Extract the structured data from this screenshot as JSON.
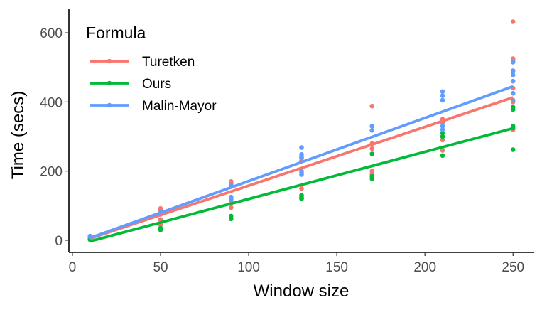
{
  "chart_data": {
    "type": "scatter",
    "xlabel": "Window size",
    "ylabel": "Time (secs)",
    "xlim": [
      -2,
      262
    ],
    "ylim": [
      -35,
      668
    ],
    "x_ticks": [
      0,
      50,
      100,
      150,
      200,
      250
    ],
    "y_ticks": [
      0,
      200,
      400,
      600
    ],
    "grid": false,
    "legend": {
      "title": "Formula",
      "position": "top-left"
    },
    "series": [
      {
        "name": "Turetken",
        "color": "#F8766D",
        "points": [
          [
            10,
            8
          ],
          [
            10,
            5
          ],
          [
            10,
            3
          ],
          [
            50,
            92
          ],
          [
            50,
            88
          ],
          [
            50,
            60
          ],
          [
            50,
            45
          ],
          [
            90,
            170
          ],
          [
            90,
            165
          ],
          [
            90,
            110
          ],
          [
            90,
            95
          ],
          [
            130,
            240
          ],
          [
            130,
            230
          ],
          [
            130,
            195
          ],
          [
            130,
            150
          ],
          [
            170,
            388
          ],
          [
            170,
            280
          ],
          [
            170,
            265
          ],
          [
            170,
            200
          ],
          [
            170,
            190
          ],
          [
            210,
            350
          ],
          [
            210,
            340
          ],
          [
            210,
            290
          ],
          [
            210,
            260
          ],
          [
            250,
            632
          ],
          [
            250,
            525
          ],
          [
            250,
            520
          ],
          [
            250,
            490
          ],
          [
            250,
            440
          ],
          [
            250,
            400
          ],
          [
            250,
            320
          ]
        ],
        "fit": [
          [
            10,
            5
          ],
          [
            250,
            413
          ]
        ]
      },
      {
        "name": "Ours",
        "color": "#00BA38",
        "points": [
          [
            10,
            5
          ],
          [
            10,
            2
          ],
          [
            50,
            35
          ],
          [
            50,
            30
          ],
          [
            90,
            70
          ],
          [
            90,
            62
          ],
          [
            130,
            130
          ],
          [
            130,
            125
          ],
          [
            130,
            120
          ],
          [
            170,
            250
          ],
          [
            170,
            185
          ],
          [
            170,
            178
          ],
          [
            210,
            310
          ],
          [
            210,
            300
          ],
          [
            210,
            245
          ],
          [
            250,
            385
          ],
          [
            250,
            378
          ],
          [
            250,
            330
          ],
          [
            250,
            325
          ],
          [
            250,
            262
          ]
        ],
        "fit": [
          [
            10,
            -3
          ],
          [
            250,
            324
          ]
        ]
      },
      {
        "name": "Malin-Mayor",
        "color": "#619CFF",
        "points": [
          [
            10,
            12
          ],
          [
            10,
            10
          ],
          [
            50,
            80
          ],
          [
            50,
            75
          ],
          [
            90,
            160
          ],
          [
            90,
            155
          ],
          [
            90,
            125
          ],
          [
            90,
            118
          ],
          [
            130,
            268
          ],
          [
            130,
            248
          ],
          [
            130,
            238
          ],
          [
            130,
            200
          ],
          [
            130,
            190
          ],
          [
            170,
            330
          ],
          [
            170,
            318
          ],
          [
            210,
            430
          ],
          [
            210,
            418
          ],
          [
            210,
            405
          ],
          [
            210,
            330
          ],
          [
            210,
            320
          ],
          [
            250,
            515
          ],
          [
            250,
            490
          ],
          [
            250,
            478
          ],
          [
            250,
            460
          ],
          [
            250,
            425
          ],
          [
            250,
            405
          ]
        ],
        "fit": [
          [
            10,
            7
          ],
          [
            250,
            445
          ]
        ]
      }
    ]
  }
}
